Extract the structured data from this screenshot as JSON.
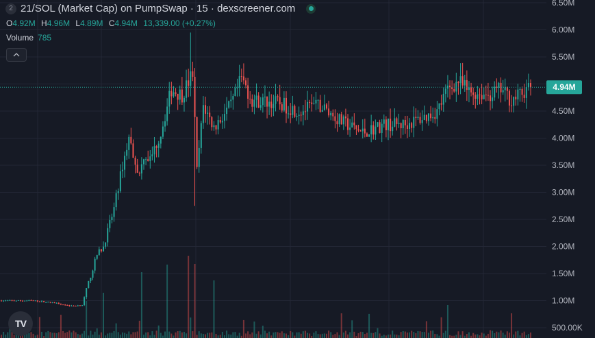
{
  "header": {
    "badge": "2",
    "title": "21/SOL (Market Cap) on PumpSwap · 15 · dexscreener.com"
  },
  "ohlc": {
    "o_label": "O",
    "o": "4.92M",
    "h_label": "H",
    "h": "4.96M",
    "l_label": "L",
    "l": "4.89M",
    "c_label": "C",
    "c": "4.94M",
    "change": "13,339.00 (+0.27%)"
  },
  "volume": {
    "label": "Volume",
    "value": "785"
  },
  "icons": {
    "collapse": "chevron-up-icon",
    "logo": "tradingview-logo",
    "live": "live-dot-icon"
  },
  "logo_text": "TV",
  "colors": {
    "up": "#26a69a",
    "down": "#ef5350",
    "background": "#161a25",
    "grid": "#232735",
    "last_price": "#26a69a"
  },
  "chart_data": {
    "type": "candlestick",
    "title": "21/SOL (Market Cap) on PumpSwap · 15 · dexscreener.com",
    "ylim": [
      500000,
      6500000
    ],
    "y_ticks": [
      "6.50M",
      "6.00M",
      "5.50M",
      "5.00M",
      "4.50M",
      "4.00M",
      "3.50M",
      "3.00M",
      "2.50M",
      "2.00M",
      "1.50M",
      "1.00M",
      "500.00K"
    ],
    "y_tick_values": [
      6500000,
      6000000,
      5500000,
      5000000,
      4500000,
      4000000,
      3500000,
      3000000,
      2500000,
      2000000,
      1500000,
      1000000,
      500000
    ],
    "last_price": 4940000,
    "last_price_label": "4.94M",
    "grid": true,
    "close_keypoints": [
      [
        0,
        1000000
      ],
      [
        15,
        1000000
      ],
      [
        25,
        960000
      ],
      [
        33,
        900000
      ],
      [
        38,
        920000
      ],
      [
        40,
        1200000
      ],
      [
        45,
        1850000
      ],
      [
        48,
        2000000
      ],
      [
        53,
        2700000
      ],
      [
        57,
        3500000
      ],
      [
        60,
        4000000
      ],
      [
        65,
        3300000
      ],
      [
        67,
        3700000
      ],
      [
        70,
        3600000
      ],
      [
        75,
        4100000
      ],
      [
        80,
        4900000
      ],
      [
        85,
        4800000
      ],
      [
        90,
        5200000
      ],
      [
        92,
        3400000
      ],
      [
        95,
        4600000
      ],
      [
        100,
        4200000
      ],
      [
        108,
        4600000
      ],
      [
        113,
        5100000
      ],
      [
        118,
        4700000
      ],
      [
        130,
        4650000
      ],
      [
        140,
        4500000
      ],
      [
        150,
        4600000
      ],
      [
        160,
        4300000
      ],
      [
        170,
        4100000
      ],
      [
        180,
        4250000
      ],
      [
        190,
        4250000
      ],
      [
        200,
        4400000
      ],
      [
        205,
        4500000
      ],
      [
        210,
        4900000
      ],
      [
        215,
        5050000
      ],
      [
        220,
        4850000
      ],
      [
        230,
        4800000
      ],
      [
        235,
        4900000
      ],
      [
        240,
        4700000
      ],
      [
        249,
        4940000
      ]
    ],
    "volume_spikes": [
      [
        40,
        0.45
      ],
      [
        48,
        0.55
      ],
      [
        66,
        0.8
      ],
      [
        78,
        0.7
      ],
      [
        88,
        1.0
      ],
      [
        91,
        0.9
      ],
      [
        100,
        0.7
      ],
      [
        123,
        0.15
      ],
      [
        160,
        0.3
      ],
      [
        210,
        0.4
      ],
      [
        240,
        0.3
      ]
    ]
  }
}
